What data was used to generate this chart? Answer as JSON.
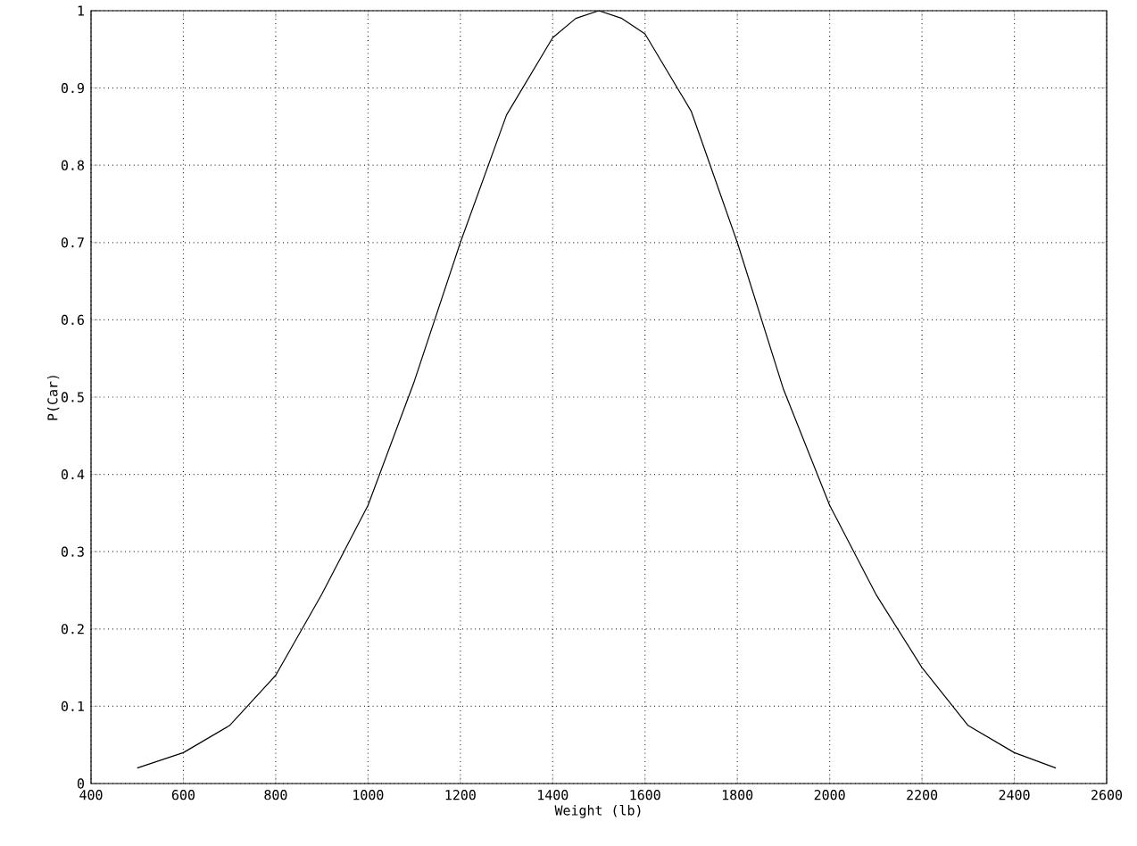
{
  "chart_data": {
    "type": "line",
    "xlabel": "Weight (lb)",
    "ylabel": "P(Car)",
    "x": [
      500,
      600,
      700,
      800,
      900,
      1000,
      1100,
      1200,
      1300,
      1400,
      1450,
      1500,
      1550,
      1600,
      1700,
      1800,
      1900,
      2000,
      2100,
      2200,
      2300,
      2400,
      2490
    ],
    "series": [
      {
        "color": "#000000",
        "values": [
          0.02,
          0.04,
          0.075,
          0.14,
          0.245,
          0.36,
          0.52,
          0.7,
          0.865,
          0.965,
          0.99,
          1.0,
          0.99,
          0.97,
          0.87,
          0.7,
          0.51,
          0.36,
          0.245,
          0.15,
          0.075,
          0.04,
          0.02
        ]
      }
    ],
    "xlim": [
      400,
      2600
    ],
    "xticks": [
      400,
      600,
      800,
      1000,
      1200,
      1400,
      1600,
      1800,
      2000,
      2200,
      2400,
      2600
    ],
    "ylim": [
      0,
      1
    ],
    "yticks": [
      0,
      0.1,
      0.2,
      0.3,
      0.4,
      0.5,
      0.6,
      0.7,
      0.8,
      0.9,
      1
    ],
    "grid": true,
    "marker": "none",
    "line_style": "solid"
  }
}
